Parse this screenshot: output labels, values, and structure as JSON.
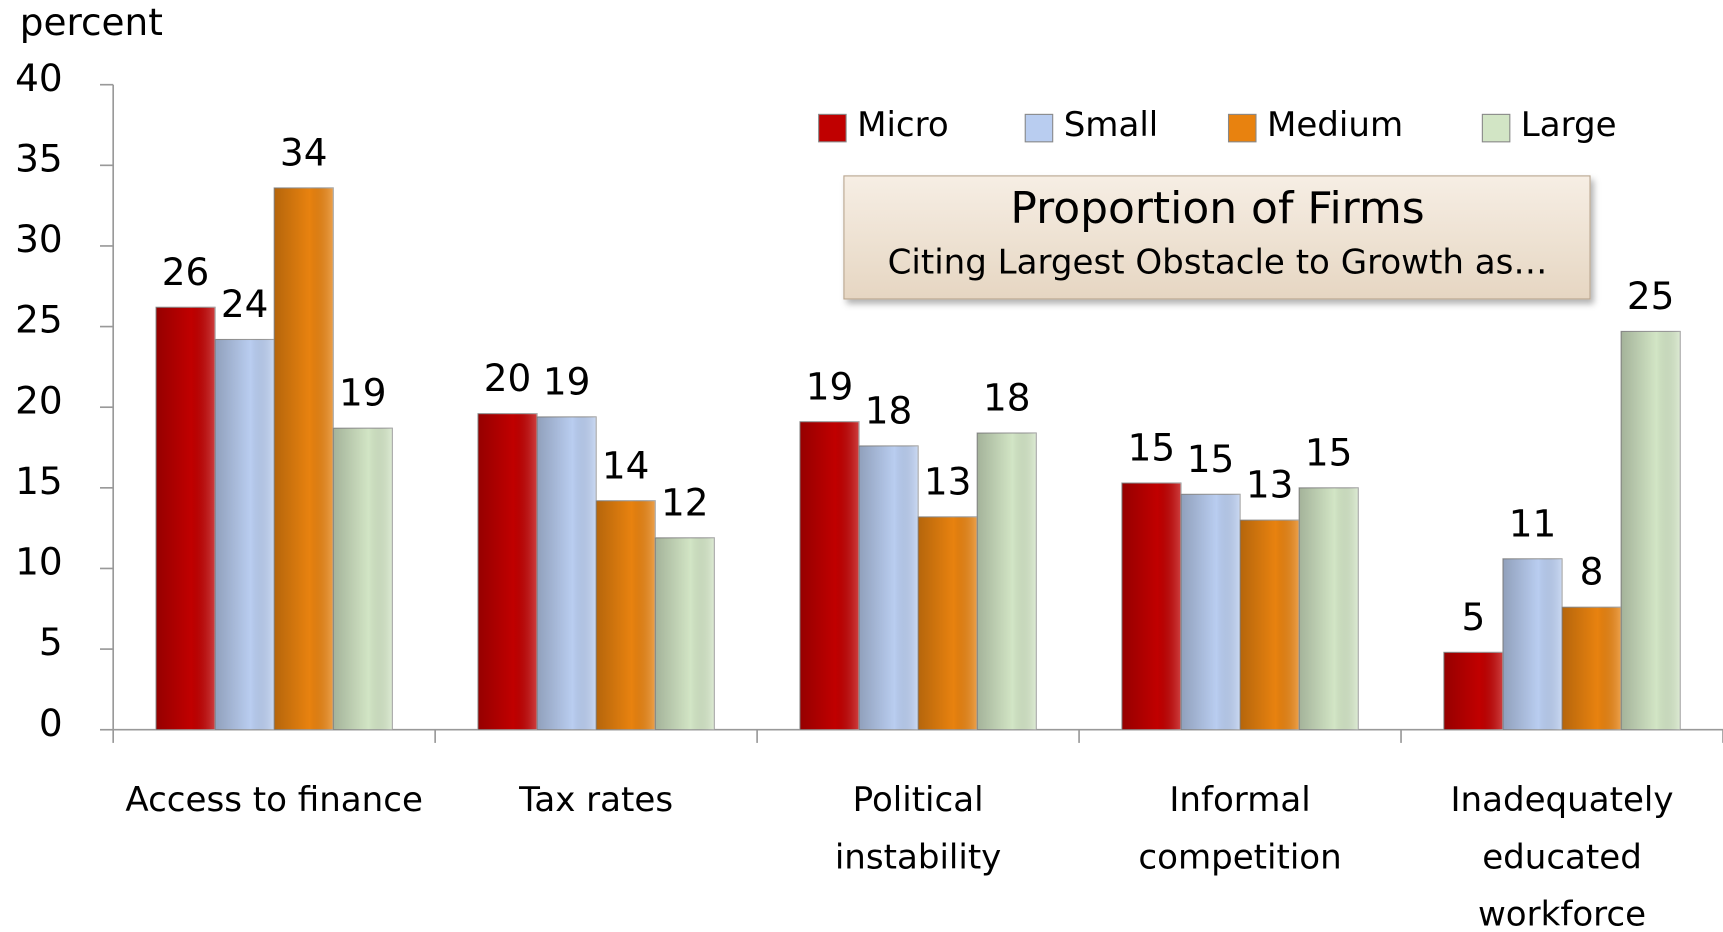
{
  "chart_data": {
    "type": "bar",
    "title": "Proportion of Firms",
    "subtitle": "Citing Largest Obstacle to Growth as…",
    "y_axis_label": "percent",
    "categories": [
      "Access to finance",
      "Tax rates",
      "Political\ninstability",
      "Informal\ncompetition",
      "Inadequately\neducated\nworkforce"
    ],
    "series": [
      {
        "name": "Micro",
        "color": "#c00000",
        "values": [
          26.2,
          19.6,
          19.1,
          15.3,
          4.8
        ],
        "value_labels": [
          "26",
          "20",
          "19",
          "15",
          "5"
        ]
      },
      {
        "name": "Small",
        "color": "#b9cdf0",
        "values": [
          24.2,
          19.4,
          17.6,
          14.6,
          10.6
        ],
        "value_labels": [
          "24",
          "19",
          "18",
          "15",
          "11"
        ]
      },
      {
        "name": "Medium",
        "color": "#e8820f",
        "values": [
          33.6,
          14.2,
          13.2,
          13.0,
          7.6
        ],
        "value_labels": [
          "34",
          "14",
          "13",
          "13",
          "8"
        ]
      },
      {
        "name": "Large",
        "color": "#d2e5c5",
        "values": [
          18.7,
          11.9,
          18.4,
          15.0,
          24.7
        ],
        "value_labels": [
          "19",
          "12",
          "18",
          "15",
          "25"
        ]
      }
    ],
    "ylim": [
      0,
      40
    ],
    "yticks": [
      0,
      5,
      10,
      15,
      20,
      25,
      30,
      35,
      40
    ],
    "legend": "top-right"
  }
}
